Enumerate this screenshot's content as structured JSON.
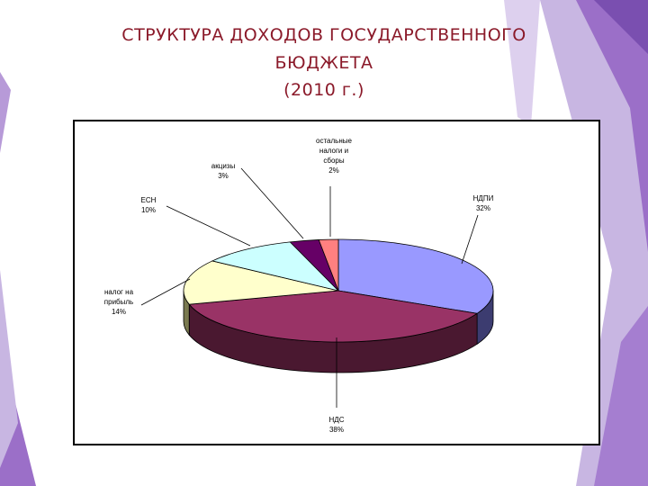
{
  "slide": {
    "title_lines": [
      "СТРУКТУРА  ДОХОДОВ ГОСУДАРСТВЕННОГО",
      "БЮДЖЕТА",
      "(2010 г.)"
    ],
    "colors": {
      "title": "#8b1a2a",
      "accent_purple": "#9b6fc8"
    }
  },
  "chart_data": {
    "type": "pie",
    "title": "",
    "labels": [
      "НДПИ",
      "НДС",
      "налог на прибыль",
      "ЕСН",
      "акцизы",
      "остальные налоги и сборы"
    ],
    "values": [
      32,
      38,
      14,
      10,
      3,
      2
    ],
    "label_lines": [
      [
        "НДПИ"
      ],
      [
        "НДС"
      ],
      [
        "налог на",
        "прибыль"
      ],
      [
        "ЕСН"
      ],
      [
        "акцизы"
      ],
      [
        "остальные",
        "налоги и",
        "сборы"
      ]
    ],
    "value_texts": [
      "32%",
      "38%",
      "14%",
      "10%",
      "3%",
      "2%"
    ],
    "colors": [
      "#9999ff",
      "#993366",
      "#ffffcc",
      "#ccffff",
      "#660066",
      "#ff8080"
    ],
    "side_colors": [
      "#3c3c70",
      "#4a1830",
      "#7a7a50",
      "#5a7a7a",
      "#2a002a",
      "#803030"
    ],
    "style": "3d",
    "legend": "none"
  }
}
